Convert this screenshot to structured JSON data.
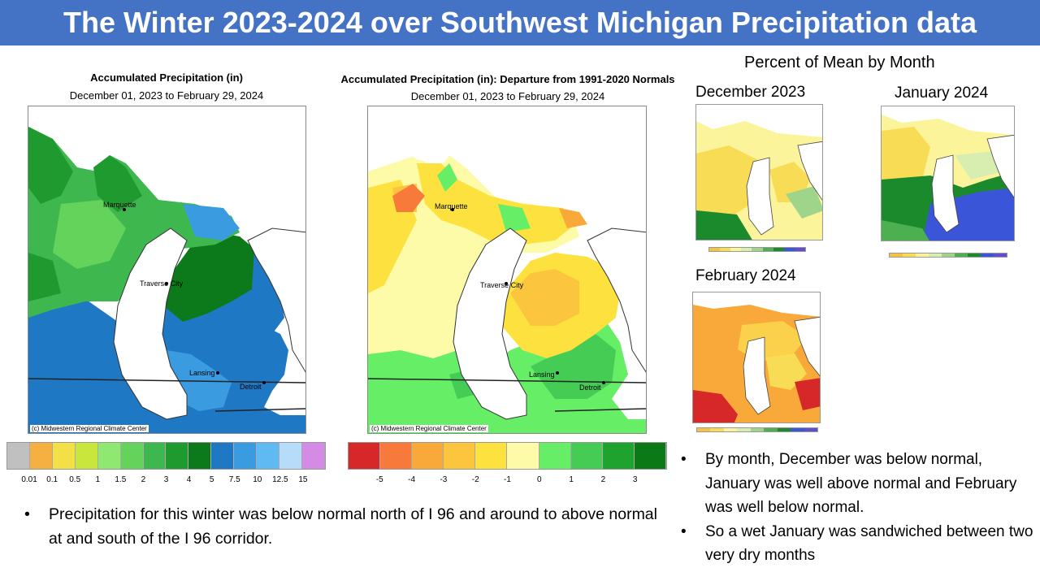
{
  "banner": {
    "title": "The Winter 2023-2024 over Southwest Michigan Precipitation data",
    "color": "#4472c4"
  },
  "map_left": {
    "title": "Accumulated Precipitation (in)",
    "subtitle": "December 01, 2023 to February 29, 2024",
    "credit": "(c) Midwestern Regional Climate Center",
    "cities": {
      "marquette": "Marquette",
      "traverse": "Traverse City",
      "lansing": "Lansing",
      "detroit": "Detroit"
    },
    "legend_colors": [
      "#c0c0c0",
      "#f5b041",
      "#f2e046",
      "#c8e63c",
      "#8fe86f",
      "#63d35b",
      "#3eb84e",
      "#1f9a2e",
      "#0c7a1a",
      "#1f78c3",
      "#3a9be0",
      "#5fb9f2",
      "#b6dcfa",
      "#d58ae6"
    ],
    "legend_labels": [
      "0.01",
      "0.1",
      "0.5",
      "1",
      "1.5",
      "2",
      "3",
      "4",
      "5",
      "7.5",
      "10",
      "12.5",
      "15"
    ]
  },
  "map_right": {
    "title": "Accumulated Precipitation (in): Departure from 1991-2020 Normals",
    "subtitle": "December 01, 2023 to February 29, 2024",
    "credit": "(c) Midwestern Regional Climate Center",
    "cities": {
      "marquette": "Marquette",
      "traverse": "Traverse City",
      "lansing": "Lansing",
      "detroit": "Detroit"
    },
    "legend_colors": [
      "#d62828",
      "#f77a3a",
      "#f9a93a",
      "#fbc53e",
      "#fde23f",
      "#fdfaa8",
      "#66ee66",
      "#44cc55",
      "#1fa32f",
      "#0b7a16"
    ],
    "legend_labels": [
      "-5",
      "-4",
      "-3",
      "-2",
      "-1",
      "0",
      "1",
      "2",
      "3"
    ]
  },
  "monthly": {
    "section_title": "Percent of Mean by Month",
    "december": "December 2023",
    "january": "January 2024",
    "february": "February 2024",
    "mini_legend_colors": [
      "#f5c242",
      "#f9dc55",
      "#fbf49a",
      "#d8eeb0",
      "#9fd58a",
      "#4caf50",
      "#1b8a2c",
      "#3a55d8",
      "#5e4fd0"
    ]
  },
  "bullets_left": [
    "Precipitation for this winter was below normal north of I 96 and around to above normal at and south of the I  96 corridor."
  ],
  "bullets_right": [
    "By month, December was below normal, January was well above normal and February was well below normal.",
    "So a wet January was sandwiched between two very dry months"
  ]
}
